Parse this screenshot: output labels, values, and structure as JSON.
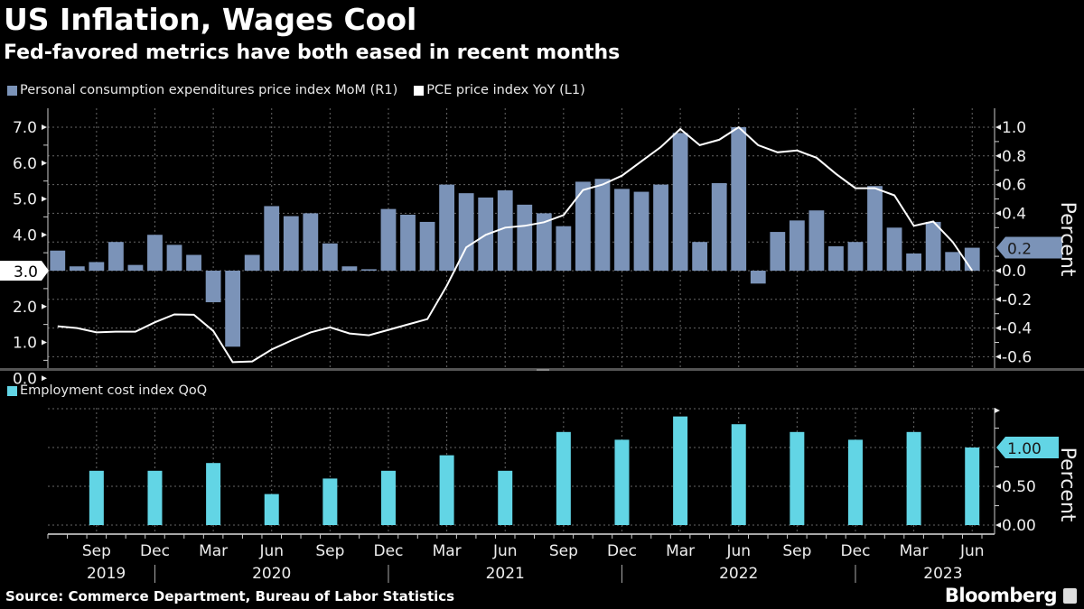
{
  "header": {
    "title": "US Inflation, Wages Cool",
    "subtitle": "Fed-favored metrics have both eased in recent months"
  },
  "footer": {
    "source": "Source: Commerce Department, Bureau of Labor Statistics",
    "brand": "Bloomberg"
  },
  "colors": {
    "mom_bar": "#7b93b8",
    "yoy_line": "#ffffff",
    "eci_bar": "#62d5e5",
    "background": "#000000"
  },
  "chart_data": [
    {
      "type": "bar",
      "title": "US Inflation, Wages Cool",
      "subtitle": "Fed-favored metrics have both eased in recent months",
      "legend": [
        {
          "name": "Personal consumption expenditures price index MoM (R1)",
          "color": "#7b93b8"
        },
        {
          "name": "PCE price index YoY (L1)",
          "color": "#ffffff"
        }
      ],
      "legend_placement": "top-left",
      "grid": true,
      "x": [
        "Jul 2019",
        "Aug 2019",
        "Sep 2019",
        "Oct 2019",
        "Nov 2019",
        "Dec 2019",
        "Jan 2020",
        "Feb 2020",
        "Mar 2020",
        "Apr 2020",
        "May 2020",
        "Jun 2020",
        "Jul 2020",
        "Aug 2020",
        "Sep 2020",
        "Oct 2020",
        "Nov 2020",
        "Dec 2020",
        "Jan 2021",
        "Feb 2021",
        "Mar 2021",
        "Apr 2021",
        "May 2021",
        "Jun 2021",
        "Jul 2021",
        "Aug 2021",
        "Sep 2021",
        "Oct 2021",
        "Nov 2021",
        "Dec 2021",
        "Jan 2022",
        "Feb 2022",
        "Mar 2022",
        "Apr 2022",
        "May 2022",
        "Jun 2022",
        "Jul 2022",
        "Aug 2022",
        "Sep 2022",
        "Oct 2022",
        "Nov 2022",
        "Dec 2022",
        "Jan 2023",
        "Feb 2023",
        "Mar 2023",
        "Apr 2023",
        "May 2023",
        "Jun 2023"
      ],
      "series": [
        {
          "name": "Personal consumption expenditures price index MoM (R1)",
          "axis": "right",
          "kind": "bar",
          "values": [
            0.14,
            0.03,
            0.06,
            0.2,
            0.04,
            0.25,
            0.18,
            0.11,
            -0.22,
            -0.53,
            0.11,
            0.45,
            0.38,
            0.4,
            0.19,
            0.03,
            0.01,
            0.43,
            0.39,
            0.34,
            0.6,
            0.54,
            0.51,
            0.56,
            0.46,
            0.4,
            0.31,
            0.62,
            0.64,
            0.57,
            0.55,
            0.6,
            0.96,
            0.2,
            0.61,
            1.0,
            -0.09,
            0.27,
            0.35,
            0.42,
            0.17,
            0.2,
            0.59,
            0.3,
            0.12,
            0.34,
            0.13,
            0.16
          ]
        },
        {
          "name": "PCE price index YoY (L1)",
          "axis": "left",
          "kind": "line",
          "values": [
            1.45,
            1.4,
            1.28,
            1.3,
            1.3,
            1.56,
            1.78,
            1.77,
            1.32,
            0.45,
            0.47,
            0.8,
            1.05,
            1.28,
            1.42,
            1.25,
            1.2,
            1.35,
            1.5,
            1.65,
            2.58,
            3.65,
            4.0,
            4.2,
            4.25,
            4.35,
            4.55,
            5.25,
            5.4,
            5.65,
            6.05,
            6.45,
            6.95,
            6.5,
            6.65,
            7.0,
            6.5,
            6.3,
            6.35,
            6.15,
            5.7,
            5.3,
            5.3,
            5.1,
            4.25,
            4.37,
            3.8,
            3.0
          ]
        }
      ],
      "left_axis": {
        "ticks": [
          "0.0",
          "1.0",
          "2.0",
          "3.0",
          "4.0",
          "5.0",
          "6.0",
          "7.0"
        ],
        "ylim": [
          -0.25,
          7.45
        ]
      },
      "right_axis": {
        "ticks": [
          "-0.6",
          "-0.4",
          "-0.2",
          "0.0",
          "0.2",
          "0.4",
          "0.6",
          "0.8",
          "1.0"
        ],
        "ylim": [
          -0.65,
          1.125
        ],
        "label": "Percent"
      },
      "left_last_value_label": "3.0",
      "right_last_value_label": "0.2"
    },
    {
      "type": "bar",
      "legend": [
        {
          "name": "Employment cost index QoQ",
          "color": "#62d5e5"
        }
      ],
      "legend_placement": "top-left",
      "grid": true,
      "x": [
        "Sep 2019",
        "Dec 2019",
        "Mar 2020",
        "Jun 2020",
        "Sep 2020",
        "Dec 2020",
        "Mar 2021",
        "Jun 2021",
        "Sep 2021",
        "Dec 2021",
        "Mar 2022",
        "Jun 2022",
        "Sep 2022",
        "Dec 2022",
        "Mar 2023",
        "Jun 2023"
      ],
      "series": [
        {
          "name": "Employment cost index QoQ",
          "values": [
            0.7,
            0.7,
            0.8,
            0.4,
            0.6,
            0.7,
            0.9,
            0.7,
            1.2,
            1.1,
            1.4,
            1.3,
            1.2,
            1.1,
            1.2,
            1.0
          ]
        }
      ],
      "right_axis": {
        "ticks": [
          "0.00",
          "0.50",
          "1.00"
        ],
        "ylim": [
          -0.25,
          1.5
        ],
        "label": "Percent"
      },
      "right_last_value_label": "1.00",
      "x_tick_labels": [
        "Sep",
        "Dec",
        "Mar",
        "Jun",
        "Sep",
        "Dec",
        "Mar",
        "Jun",
        "Sep",
        "Dec",
        "Mar",
        "Jun",
        "Sep",
        "Dec",
        "Mar",
        "Jun"
      ],
      "x_year_labels": [
        "2019",
        "2020",
        "2021",
        "2022",
        "2023"
      ]
    }
  ]
}
